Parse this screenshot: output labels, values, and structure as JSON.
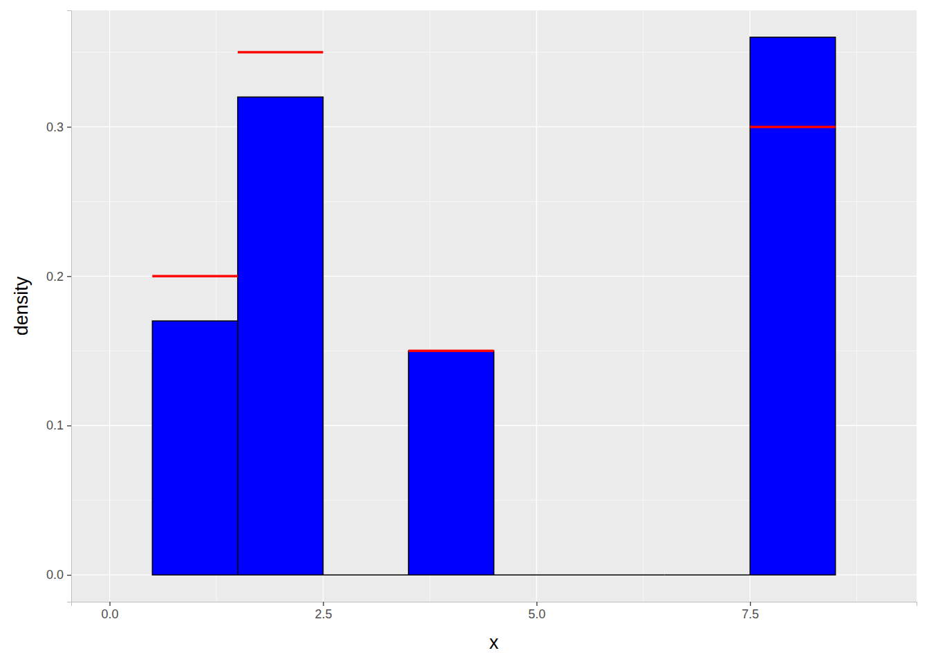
{
  "chart_data": {
    "type": "histogram",
    "x_label": "x",
    "y_label": "density",
    "bins": [
      0.5,
      1.5,
      2.5,
      3.5,
      4.5,
      5.5,
      6.5,
      7.5,
      8.5
    ],
    "values": [
      0.17,
      0.32,
      0,
      0.15,
      0,
      0,
      0,
      0.36
    ],
    "color": "#0000ff",
    "series": [
      {
        "type": "segment",
        "color": "#ff0000",
        "values": [
          0.2,
          0.35,
          null,
          0.15,
          null,
          null,
          null,
          0.3
        ]
      }
    ],
    "xlim": [
      -0.45,
      9.45
    ],
    "xticks": [
      {
        "value": 0,
        "label": "0.0"
      },
      2.5,
      {
        "value": 5,
        "label": "5.0"
      },
      7.5
    ],
    "x_minor_ticks": [
      1.25,
      3.75,
      6.25,
      8.75
    ],
    "ylim": [
      -0.018,
      0.378
    ],
    "yticks": [
      {
        "value": 0,
        "label": "0.0"
      },
      0.1,
      0.2,
      0.3
    ],
    "y_minor_ticks": [
      0.05,
      0.15,
      0.25,
      0.35
    ],
    "grid": true
  }
}
